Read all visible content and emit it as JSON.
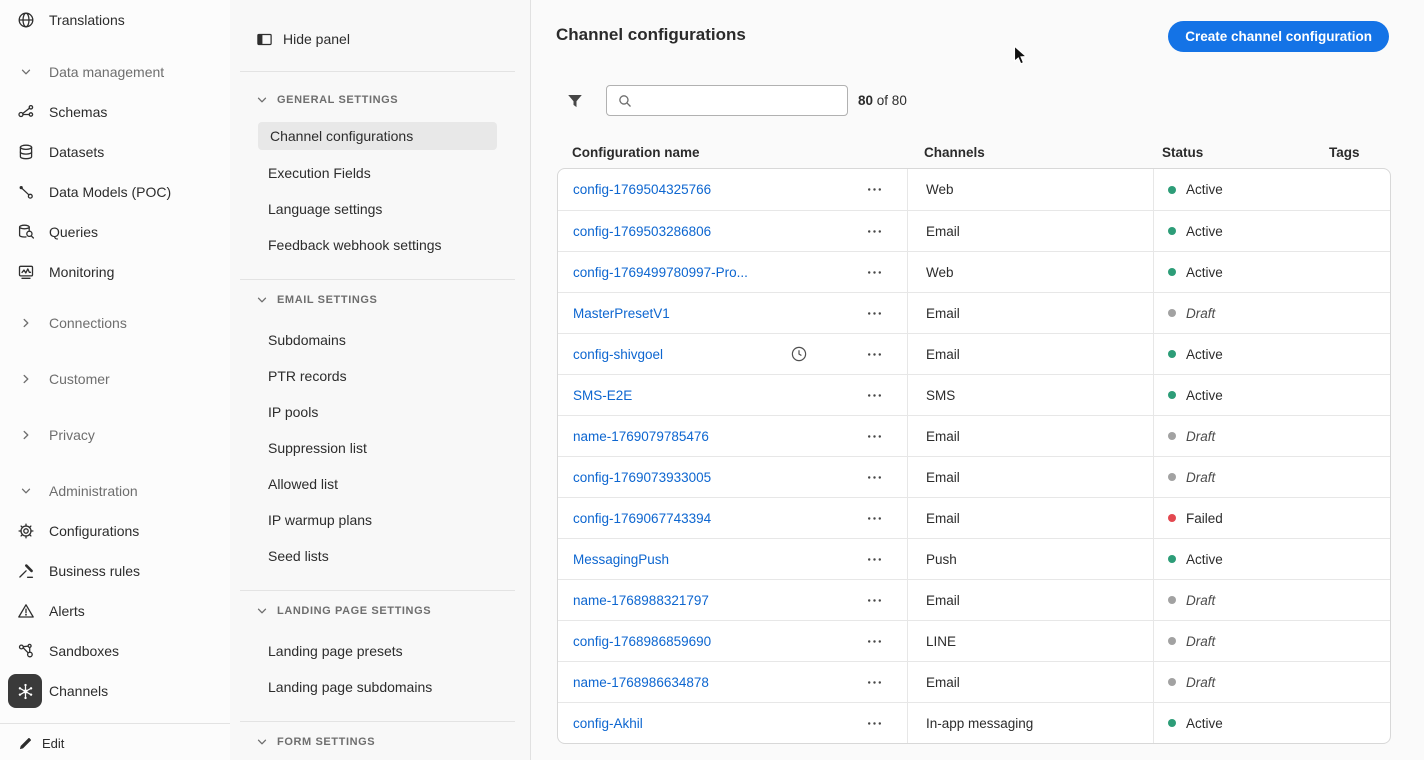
{
  "colors": {
    "accent": "#1473e6",
    "link": "#0d66d0",
    "status_active": "#2d9d78",
    "status_draft": "#a2a2a2",
    "status_failed": "#e34850"
  },
  "rail": {
    "items": [
      {
        "label": "Translations",
        "icon": "globe-icon",
        "kind": "item"
      },
      {
        "label": "Data management",
        "icon": "chevron-down-icon",
        "kind": "group"
      },
      {
        "label": "Schemas",
        "icon": "schemas-icon",
        "kind": "item"
      },
      {
        "label": "Datasets",
        "icon": "datasets-icon",
        "kind": "item"
      },
      {
        "label": "Data Models (POC)",
        "icon": "data-models-icon",
        "kind": "item"
      },
      {
        "label": "Queries",
        "icon": "queries-icon",
        "kind": "item"
      },
      {
        "label": "Monitoring",
        "icon": "monitoring-icon",
        "kind": "item"
      },
      {
        "label": "Connections",
        "icon": "chevron-right-icon",
        "kind": "group"
      },
      {
        "label": "Customer",
        "icon": "chevron-right-icon",
        "kind": "group"
      },
      {
        "label": "Privacy",
        "icon": "chevron-right-icon",
        "kind": "group"
      },
      {
        "label": "Administration",
        "icon": "chevron-down-icon",
        "kind": "group"
      },
      {
        "label": "Configurations",
        "icon": "gear-icon",
        "kind": "item"
      },
      {
        "label": "Business rules",
        "icon": "gavel-icon",
        "kind": "item"
      },
      {
        "label": "Alerts",
        "icon": "alert-triangle-icon",
        "kind": "item"
      },
      {
        "label": "Sandboxes",
        "icon": "sandboxes-icon",
        "kind": "item"
      },
      {
        "label": "Channels",
        "icon": "hub-icon",
        "kind": "item",
        "selected": true
      }
    ],
    "edit_label": "Edit"
  },
  "panel": {
    "hide_label": "Hide panel",
    "sections": [
      {
        "title": "GENERAL SETTINGS",
        "items": [
          {
            "label": "Channel configurations",
            "selected": true
          },
          {
            "label": "Execution Fields"
          },
          {
            "label": "Language settings"
          },
          {
            "label": "Feedback webhook settings"
          }
        ]
      },
      {
        "title": "EMAIL SETTINGS",
        "items": [
          {
            "label": "Subdomains"
          },
          {
            "label": "PTR records"
          },
          {
            "label": "IP pools"
          },
          {
            "label": "Suppression list"
          },
          {
            "label": "Allowed list"
          },
          {
            "label": "IP warmup plans"
          },
          {
            "label": "Seed lists"
          }
        ]
      },
      {
        "title": "LANDING PAGE SETTINGS",
        "items": [
          {
            "label": "Landing page presets"
          },
          {
            "label": "Landing page subdomains"
          }
        ]
      },
      {
        "title": "FORM SETTINGS",
        "items": []
      }
    ]
  },
  "main": {
    "title": "Channel configurations",
    "create_button": "Create channel configuration",
    "search_placeholder": "",
    "count": "80",
    "count_suffix": "of 80",
    "table": {
      "columns": [
        "Configuration name",
        "Channels",
        "Status",
        "Tags"
      ],
      "rows": [
        {
          "name": "config-1769504325766",
          "channel": "Web",
          "status": "Active",
          "state": "active"
        },
        {
          "name": "config-1769503286806",
          "channel": "Email",
          "status": "Active",
          "state": "active"
        },
        {
          "name": "config-1769499780997-Pro...",
          "channel": "Web",
          "status": "Active",
          "state": "active"
        },
        {
          "name": "MasterPresetV1",
          "channel": "Email",
          "status": "Draft",
          "state": "draft"
        },
        {
          "name": "config-shivgoel",
          "channel": "Email",
          "status": "Active",
          "state": "active",
          "clock": true
        },
        {
          "name": "SMS-E2E",
          "channel": "SMS",
          "status": "Active",
          "state": "active"
        },
        {
          "name": "name-1769079785476",
          "channel": "Email",
          "status": "Draft",
          "state": "draft"
        },
        {
          "name": "config-1769073933005",
          "channel": "Email",
          "status": "Draft",
          "state": "draft"
        },
        {
          "name": "config-1769067743394",
          "channel": "Email",
          "status": "Failed",
          "state": "failed"
        },
        {
          "name": "MessagingPush",
          "channel": "Push",
          "status": "Active",
          "state": "active"
        },
        {
          "name": "name-1768988321797",
          "channel": "Email",
          "status": "Draft",
          "state": "draft"
        },
        {
          "name": "config-1768986859690",
          "channel": "LINE",
          "status": "Draft",
          "state": "draft"
        },
        {
          "name": "name-1768986634878",
          "channel": "Email",
          "status": "Draft",
          "state": "draft"
        },
        {
          "name": "config-Akhil",
          "channel": "In-app messaging",
          "status": "Active",
          "state": "active"
        }
      ]
    }
  }
}
